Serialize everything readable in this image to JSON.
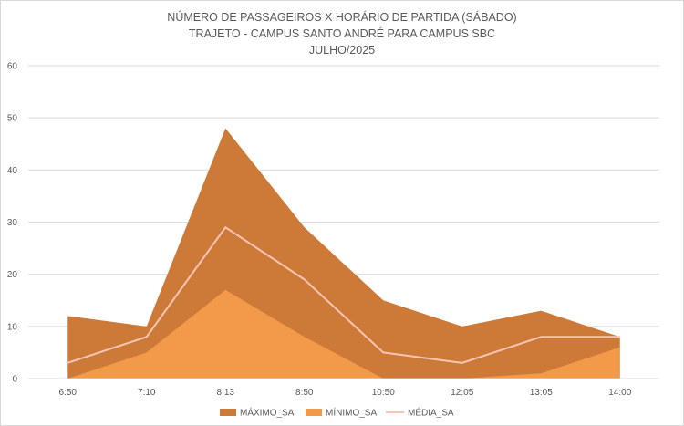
{
  "chart_data": {
    "type": "area",
    "title_lines": [
      "NÚMERO DE PASSAGEIROS X HORÁRIO DE PARTIDA (SÁBADO)",
      "TRAJETO - CAMPUS SANTO ANDRÉ PARA CAMPUS SBC",
      "JULHO/2025"
    ],
    "categories": [
      "6:50",
      "7:10",
      "8:13",
      "8:50",
      "10:50",
      "12:05",
      "13:05",
      "14:00"
    ],
    "y_ticks": [
      "0",
      "10",
      "20",
      "30",
      "40",
      "50",
      "60"
    ],
    "ylim": [
      0,
      60
    ],
    "grid": true,
    "legend_position": "bottom",
    "series": [
      {
        "name": "MÁXIMO_SA",
        "render": "area",
        "color": "#cd7a38",
        "values": [
          12,
          10,
          48,
          29,
          15,
          10,
          13,
          8
        ]
      },
      {
        "name": "MÍNIMO_SA",
        "render": "area",
        "color": "#f39a4a",
        "values": [
          0,
          5,
          17,
          8,
          0,
          0,
          1,
          6
        ]
      },
      {
        "name": "MÉDIA_SA",
        "render": "line",
        "color": "#f7c5b4",
        "values": [
          3,
          8,
          29,
          19,
          5,
          3,
          8,
          8
        ]
      }
    ]
  }
}
